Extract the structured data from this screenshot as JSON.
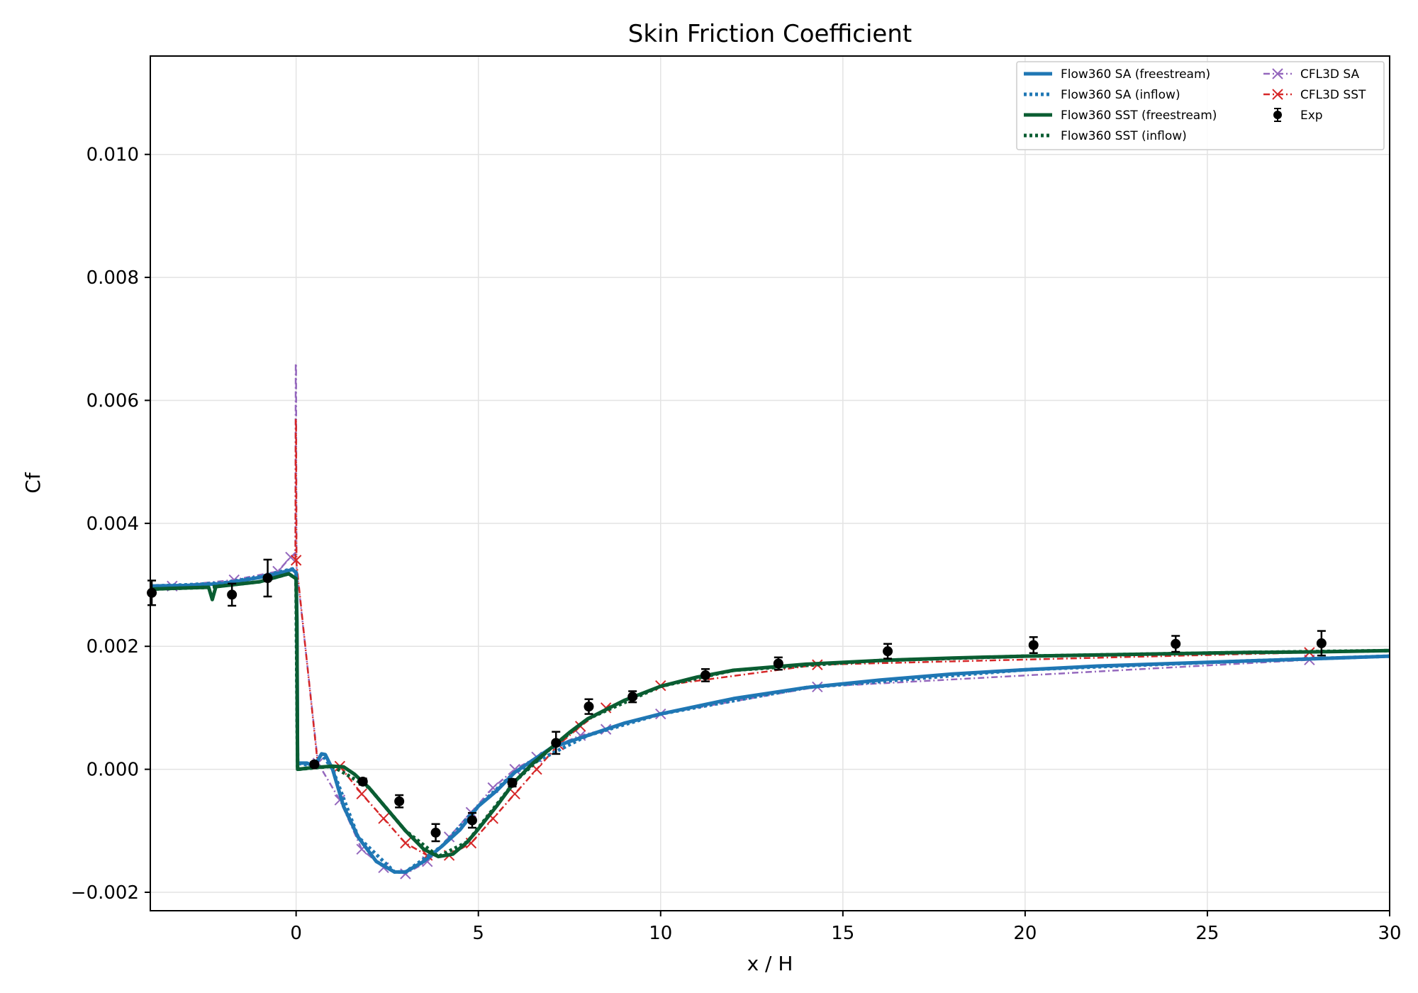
{
  "chart_data": {
    "type": "line",
    "title": "Skin Friction Coefficient",
    "xlabel": "x / H",
    "ylabel": "Cf",
    "xlim": [
      -4,
      30
    ],
    "ylim": [
      -0.0023,
      0.0116
    ],
    "xticks": [
      0,
      5,
      10,
      15,
      20,
      25,
      30
    ],
    "yticks": [
      -0.002,
      0.0,
      0.002,
      0.004,
      0.006,
      0.008,
      0.01
    ],
    "xtick_labels": [
      "0",
      "5",
      "10",
      "15",
      "20",
      "25",
      "30"
    ],
    "ytick_labels": [
      "−0.002",
      "0.000",
      "0.002",
      "0.004",
      "0.006",
      "0.008",
      "0.010"
    ],
    "grid": true,
    "legend_position": "top-right",
    "series": [
      {
        "name": "Flow360 SA (freestream)",
        "color": "#1f77b4",
        "style": "solid",
        "points": [
          [
            -4,
            0.00298
          ],
          [
            -3,
            0.00299
          ],
          [
            -2,
            0.00302
          ],
          [
            -1,
            0.00312
          ],
          [
            -0.4,
            0.0032
          ],
          [
            -0.1,
            0.00325
          ],
          [
            0,
            0.0032
          ],
          [
            0.02,
            0.0025
          ],
          [
            0.04,
            0.0001
          ],
          [
            0.3,
            0.0001
          ],
          [
            0.5,
            5e-05
          ],
          [
            0.7,
            0.00025
          ],
          [
            0.8,
            0.00024
          ],
          [
            1.0,
            0.0
          ],
          [
            1.3,
            -0.0006
          ],
          [
            1.7,
            -0.0011
          ],
          [
            2.2,
            -0.0015
          ],
          [
            2.7,
            -0.00167
          ],
          [
            3.0,
            -0.00167
          ],
          [
            3.5,
            -0.0015
          ],
          [
            4.0,
            -0.00125
          ],
          [
            4.5,
            -0.00098
          ],
          [
            5.0,
            -0.0006
          ],
          [
            5.5,
            -0.00035
          ],
          [
            6.0,
            -5e-05
          ],
          [
            7.0,
            0.00035
          ],
          [
            8.0,
            0.00055
          ],
          [
            9.0,
            0.00075
          ],
          [
            10.0,
            0.0009
          ],
          [
            12.0,
            0.00115
          ],
          [
            14.0,
            0.00133
          ],
          [
            16.0,
            0.00145
          ],
          [
            18.0,
            0.00155
          ],
          [
            20.0,
            0.00162
          ],
          [
            22.0,
            0.00168
          ],
          [
            24.0,
            0.00172
          ],
          [
            26.0,
            0.00176
          ],
          [
            28.0,
            0.0018
          ],
          [
            30.0,
            0.00184
          ]
        ]
      },
      {
        "name": "Flow360 SA (inflow)",
        "color": "#1f77b4",
        "style": "dotted",
        "points": [
          [
            -4,
            0.00298
          ],
          [
            -3,
            0.003
          ],
          [
            -2,
            0.00303
          ],
          [
            -1,
            0.00313
          ],
          [
            -0.1,
            0.00326
          ],
          [
            0,
            0.0032
          ],
          [
            0.04,
            0.0001
          ],
          [
            0.5,
            5e-05
          ],
          [
            0.7,
            0.00025
          ],
          [
            1.0,
            0.0
          ],
          [
            1.7,
            -0.0011
          ],
          [
            2.7,
            -0.00167
          ],
          [
            3.0,
            -0.00167
          ],
          [
            4.0,
            -0.00125
          ],
          [
            5.0,
            -0.0006
          ],
          [
            6.0,
            -5e-05
          ],
          [
            8.0,
            0.00055
          ],
          [
            10.0,
            0.0009
          ],
          [
            14.0,
            0.00133
          ],
          [
            20.0,
            0.00162
          ],
          [
            26.0,
            0.00176
          ],
          [
            30.0,
            0.00184
          ]
        ]
      },
      {
        "name": "Flow360 SST (freestream)",
        "color": "#0a5d32",
        "style": "solid",
        "points": [
          [
            -4,
            0.00293
          ],
          [
            -3,
            0.00295
          ],
          [
            -2.4,
            0.00296
          ],
          [
            -2.3,
            0.00276
          ],
          [
            -2.2,
            0.00297
          ],
          [
            -1,
            0.00305
          ],
          [
            -0.2,
            0.00318
          ],
          [
            0,
            0.0031
          ],
          [
            0.02,
            0.0024
          ],
          [
            0.04,
            0.0
          ],
          [
            0.5,
            3e-05
          ],
          [
            1.0,
            5e-05
          ],
          [
            1.3,
            4e-05
          ],
          [
            1.6,
            -8e-05
          ],
          [
            2.0,
            -0.0003
          ],
          [
            2.5,
            -0.00065
          ],
          [
            3.0,
            -0.001
          ],
          [
            3.5,
            -0.0013
          ],
          [
            3.9,
            -0.00142
          ],
          [
            4.3,
            -0.00138
          ],
          [
            4.7,
            -0.00118
          ],
          [
            5.0,
            -0.00097
          ],
          [
            5.5,
            -0.0006
          ],
          [
            6.0,
            -0.0002
          ],
          [
            6.5,
            0.0001
          ],
          [
            7.0,
            0.00035
          ],
          [
            7.5,
            0.0006
          ],
          [
            8.0,
            0.00082
          ],
          [
            9.0,
            0.00112
          ],
          [
            10.0,
            0.00135
          ],
          [
            11.0,
            0.0015
          ],
          [
            12.0,
            0.00161
          ],
          [
            14.0,
            0.00171
          ],
          [
            16.0,
            0.00177
          ],
          [
            18.0,
            0.00181
          ],
          [
            20.0,
            0.00184
          ],
          [
            22.0,
            0.00186
          ],
          [
            24.0,
            0.00188
          ],
          [
            26.0,
            0.0019
          ],
          [
            28.0,
            0.00191
          ],
          [
            30.0,
            0.00193
          ]
        ]
      },
      {
        "name": "Flow360 SST (inflow)",
        "color": "#0a5d32",
        "style": "dotted",
        "points": [
          [
            -4,
            0.00293
          ],
          [
            -2.4,
            0.00296
          ],
          [
            -1,
            0.00305
          ],
          [
            -0.2,
            0.00318
          ],
          [
            0,
            0.0031
          ],
          [
            0.04,
            0.0
          ],
          [
            1.0,
            5e-05
          ],
          [
            2.0,
            -0.0003
          ],
          [
            3.0,
            -0.001
          ],
          [
            3.9,
            -0.00142
          ],
          [
            4.7,
            -0.00118
          ],
          [
            6.0,
            -0.0002
          ],
          [
            7.0,
            0.00035
          ],
          [
            8.0,
            0.00082
          ],
          [
            10.0,
            0.00135
          ],
          [
            12.0,
            0.00161
          ],
          [
            16.0,
            0.00177
          ],
          [
            20.0,
            0.00184
          ],
          [
            26.0,
            0.0019
          ],
          [
            30.0,
            0.00193
          ]
        ]
      },
      {
        "name": "CFL3D SA",
        "color": "#9467bd",
        "style": "dashdot-x",
        "points": [
          [
            -4,
            0.00294
          ],
          [
            -3.4,
            0.00298
          ],
          [
            -1.7,
            0.00308
          ],
          [
            -0.5,
            0.00322
          ],
          [
            -0.15,
            0.00345
          ],
          [
            -0.02,
            0.0035
          ],
          [
            -0.01,
            0.0066
          ],
          [
            0.0,
            0.0066
          ],
          [
            0.01,
            0.0033
          ],
          [
            0.6,
            0.0001
          ],
          [
            1.2,
            -0.0005
          ],
          [
            1.8,
            -0.0013
          ],
          [
            2.4,
            -0.0016
          ],
          [
            3.0,
            -0.0017
          ],
          [
            3.6,
            -0.0015
          ],
          [
            4.2,
            -0.0011
          ],
          [
            4.8,
            -0.0007
          ],
          [
            5.4,
            -0.0003
          ],
          [
            6.0,
            0.0
          ],
          [
            6.6,
            0.0002
          ],
          [
            7.2,
            0.0004
          ],
          [
            7.8,
            0.00055
          ],
          [
            8.5,
            0.00065
          ],
          [
            10.0,
            0.0009
          ],
          [
            14.3,
            0.00134
          ],
          [
            27.8,
            0.00178
          ]
        ],
        "markers": [
          [
            -3.4,
            0.00298
          ],
          [
            -1.7,
            0.00308
          ],
          [
            -0.5,
            0.00322
          ],
          [
            -0.15,
            0.00345
          ],
          [
            0.6,
            0.0001
          ],
          [
            1.2,
            -0.0005
          ],
          [
            1.8,
            -0.0013
          ],
          [
            2.4,
            -0.0016
          ],
          [
            3.0,
            -0.0017
          ],
          [
            3.6,
            -0.0015
          ],
          [
            4.2,
            -0.0011
          ],
          [
            4.8,
            -0.0007
          ],
          [
            5.4,
            -0.0003
          ],
          [
            6.0,
            0.0
          ],
          [
            6.6,
            0.0002
          ],
          [
            7.2,
            0.0004
          ],
          [
            7.8,
            0.00055
          ],
          [
            8.5,
            0.00065
          ],
          [
            10.0,
            0.0009
          ],
          [
            14.3,
            0.00134
          ],
          [
            27.8,
            0.00178
          ]
        ]
      },
      {
        "name": "CFL3D SST",
        "color": "#d62728",
        "style": "dashdot-x",
        "points": [
          [
            -0.02,
            0.0034
          ],
          [
            -0.01,
            0.0057
          ],
          [
            0.0,
            0.0057
          ],
          [
            0.01,
            0.00335
          ],
          [
            0.6,
            5e-05
          ],
          [
            1.2,
            5e-05
          ],
          [
            1.8,
            -0.0004
          ],
          [
            2.4,
            -0.0008
          ],
          [
            3.0,
            -0.0012
          ],
          [
            3.6,
            -0.0014
          ],
          [
            4.2,
            -0.0014
          ],
          [
            4.8,
            -0.0012
          ],
          [
            5.4,
            -0.0008
          ],
          [
            6.0,
            -0.0004
          ],
          [
            6.6,
            0.0
          ],
          [
            7.2,
            0.0004
          ],
          [
            7.8,
            0.0007
          ],
          [
            8.5,
            0.001
          ],
          [
            10.0,
            0.00136
          ],
          [
            14.3,
            0.0017
          ],
          [
            27.8,
            0.0019
          ]
        ],
        "markers": [
          [
            0.0,
            0.0034
          ],
          [
            1.2,
            5e-05
          ],
          [
            1.8,
            -0.0004
          ],
          [
            2.4,
            -0.0008
          ],
          [
            3.0,
            -0.0012
          ],
          [
            3.6,
            -0.0014
          ],
          [
            4.2,
            -0.0014
          ],
          [
            4.8,
            -0.0012
          ],
          [
            5.4,
            -0.0008
          ],
          [
            6.0,
            -0.0004
          ],
          [
            6.6,
            0.0
          ],
          [
            7.2,
            0.0004
          ],
          [
            7.8,
            0.0007
          ],
          [
            8.5,
            0.001
          ],
          [
            10.0,
            0.00136
          ],
          [
            14.3,
            0.0017
          ],
          [
            27.8,
            0.0019
          ]
        ]
      },
      {
        "name": "Exp",
        "color": "#000000",
        "style": "errorbar",
        "points": [
          [
            -3.96,
            0.00287,
            0.0002
          ],
          [
            -1.76,
            0.00284,
            0.00018
          ],
          [
            -0.78,
            0.00311,
            0.0003
          ],
          [
            0.5,
            8e-05,
            4e-05
          ],
          [
            1.83,
            -0.0002,
            5e-05
          ],
          [
            2.83,
            -0.00052,
            0.0001
          ],
          [
            3.83,
            -0.00103,
            0.00014
          ],
          [
            4.83,
            -0.00083,
            0.00012
          ],
          [
            5.93,
            -0.00022,
            6e-05
          ],
          [
            7.13,
            0.00043,
            0.00018
          ],
          [
            8.03,
            0.00102,
            0.00012
          ],
          [
            9.23,
            0.00118,
            9e-05
          ],
          [
            11.23,
            0.00153,
            0.0001
          ],
          [
            13.23,
            0.00172,
            0.0001
          ],
          [
            16.23,
            0.00192,
            0.00012
          ],
          [
            20.23,
            0.00202,
            0.00013
          ],
          [
            24.13,
            0.00204,
            0.00013
          ],
          [
            28.13,
            0.00205,
            0.0002
          ]
        ]
      }
    ]
  }
}
